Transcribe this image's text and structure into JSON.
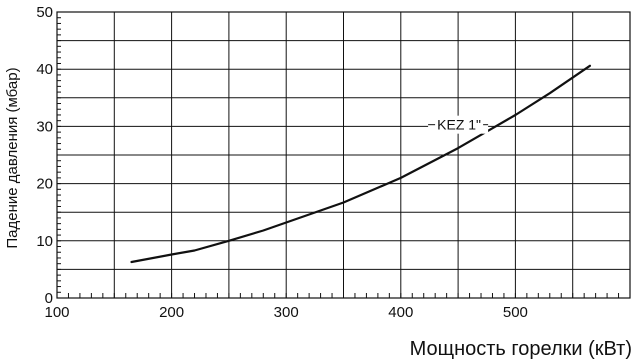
{
  "chart_data": {
    "type": "line",
    "xlabel": "Мощность горелки (кВт)",
    "ylabel": "Падение давления (мбар)",
    "xlim": [
      100,
      600
    ],
    "ylim": [
      0,
      50
    ],
    "x_ticks": [
      "100",
      "200",
      "300",
      "400",
      "500"
    ],
    "y_ticks": [
      "0",
      "10",
      "20",
      "30",
      "40",
      "50"
    ],
    "x_grid": [
      150,
      200,
      250,
      300,
      350,
      400,
      450,
      500,
      550
    ],
    "y_grid": [
      5,
      10,
      15,
      20,
      25,
      30,
      35,
      40,
      45
    ],
    "grid": true,
    "series": [
      {
        "name": "KEZ 1\"",
        "x": [
          165,
          200,
          220,
          250,
          280,
          300,
          350,
          400,
          450,
          500,
          530,
          565
        ],
        "y": [
          6.3,
          7.6,
          8.3,
          10.0,
          11.8,
          13.2,
          16.7,
          21.0,
          26.2,
          32.0,
          35.8,
          40.6
        ]
      }
    ],
    "annotations": [
      {
        "text": "KEZ 1\"",
        "x": 450,
        "y": 30.3
      }
    ],
    "colors": {
      "line": "#111111",
      "grid": "#111111",
      "background": "#ffffff"
    }
  }
}
